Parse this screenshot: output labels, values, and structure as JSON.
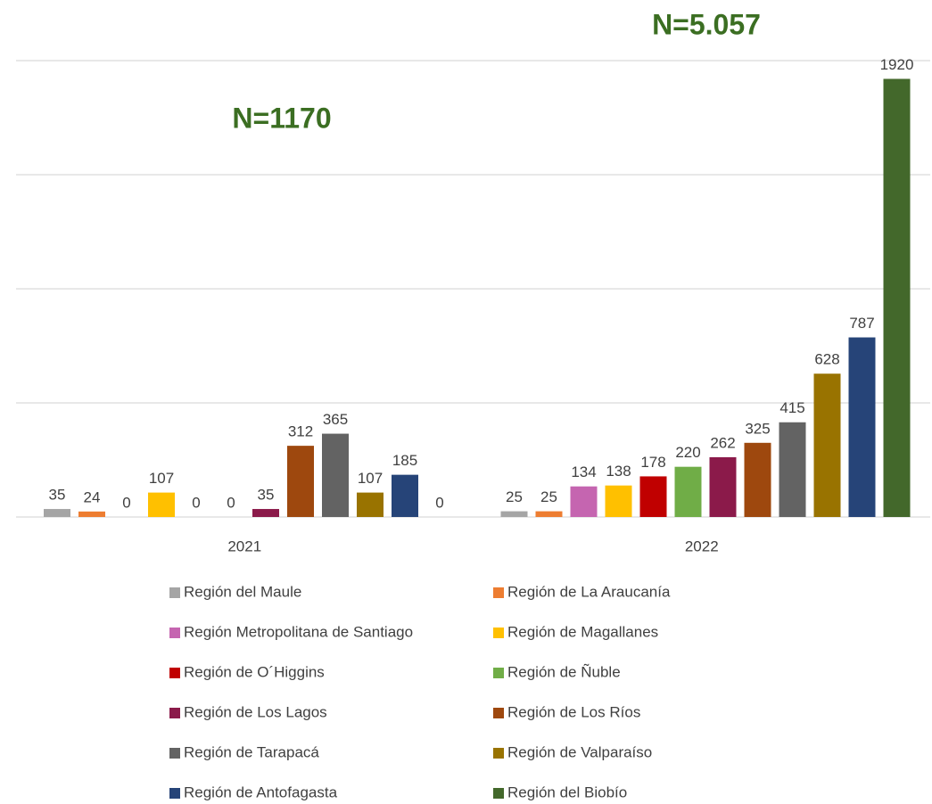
{
  "chart_data": {
    "type": "bar",
    "categories": [
      "2021",
      "2022"
    ],
    "annotations": [
      "N=1170",
      "N=5.057"
    ],
    "ylim": [
      0,
      2000
    ],
    "yticks": [
      0,
      500,
      1000,
      1500,
      2000
    ],
    "grid": true,
    "series": [
      {
        "name": "Región del Maule",
        "color": "#a5a5a5",
        "values": [
          35,
          25
        ]
      },
      {
        "name": "Región de La Araucanía",
        "color": "#ed7d31",
        "values": [
          24,
          25
        ]
      },
      {
        "name": "Región Metropolitana de Santiago",
        "color": "#c565b0",
        "values": [
          0,
          134
        ]
      },
      {
        "name": "Región de Magallanes",
        "color": "#ffc000",
        "values": [
          107,
          138
        ]
      },
      {
        "name": "Región de O´Higgins",
        "color": "#c00000",
        "values": [
          0,
          178
        ]
      },
      {
        "name": "Región de Ñuble",
        "color": "#70ad47",
        "values": [
          0,
          220
        ]
      },
      {
        "name": "Región de Los Lagos",
        "color": "#8b1a4a",
        "values": [
          35,
          262
        ]
      },
      {
        "name": "Región de Los Ríos",
        "color": "#9e480e",
        "values": [
          312,
          325
        ]
      },
      {
        "name": "Región de Tarapacá",
        "color": "#636363",
        "values": [
          365,
          415
        ]
      },
      {
        "name": "Región de Valparaíso",
        "color": "#997300",
        "values": [
          107,
          628
        ]
      },
      {
        "name": "Región de Antofagasta",
        "color": "#264478",
        "values": [
          185,
          787
        ]
      },
      {
        "name": "Región del Biobío",
        "color": "#43682b",
        "values": [
          0,
          1920
        ]
      }
    ]
  }
}
